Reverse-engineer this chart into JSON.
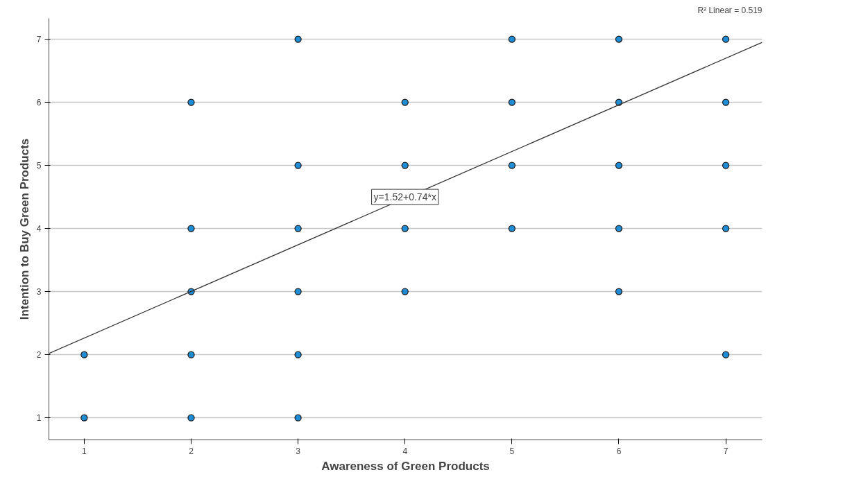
{
  "chart_data": {
    "type": "scatter",
    "xlabel": "Awareness of Green Products",
    "ylabel": "Intention to Buy Green Products",
    "xlim": [
      0.67,
      7.34
    ],
    "ylim": [
      0.65,
      7.33
    ],
    "xticks": [
      1,
      2,
      3,
      4,
      5,
      6,
      7
    ],
    "yticks": [
      1,
      2,
      3,
      4,
      5,
      6,
      7
    ],
    "grid": "y",
    "series": [
      {
        "marker": "circle",
        "color": "#1f8dd6",
        "x": [
          1,
          1,
          2,
          2,
          2,
          2,
          2,
          3,
          3,
          3,
          3,
          3,
          3,
          4,
          4,
          4,
          4,
          5,
          5,
          5,
          5,
          6,
          6,
          6,
          6,
          6,
          7,
          7,
          7,
          7,
          7
        ],
        "values": [
          2,
          1,
          6,
          4,
          3,
          2,
          1,
          7,
          5,
          4,
          3,
          2,
          1,
          6,
          5,
          4,
          3,
          7,
          6,
          5,
          4,
          7,
          6,
          5,
          4,
          3,
          7,
          6,
          5,
          4,
          2
        ]
      },
      {
        "type": "line",
        "color": "#333333",
        "line_style": "solid",
        "x": [
          0.67,
          7.34
        ],
        "values": [
          2.02,
          6.95
        ]
      }
    ],
    "annotations": [
      {
        "text": "y=1.52+0.74*x",
        "x": 4,
        "y": 4.5
      },
      "R² Linear = 0.519"
    ]
  }
}
